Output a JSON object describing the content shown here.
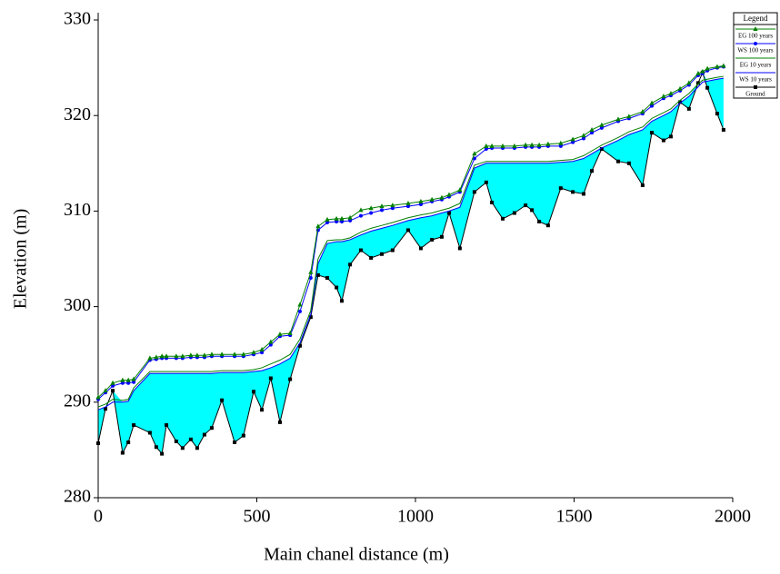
{
  "chart_data": {
    "type": "line",
    "xlabel": "Main chanel distance (m)",
    "ylabel": "Elevation (m)",
    "legend_title": "Legend",
    "legend": "top-right",
    "xlim": [
      0,
      2000
    ],
    "xticks": [
      0,
      500,
      1000,
      1500,
      2000
    ],
    "ylim": [
      280,
      330
    ],
    "yticks": [
      280,
      290,
      300,
      310,
      320,
      330
    ],
    "fill_color": "#00ffff",
    "x": [
      0,
      23,
      46,
      77,
      95,
      112,
      163,
      183,
      201,
      215,
      246,
      266,
      292,
      312,
      335,
      358,
      390,
      430,
      458,
      490,
      516,
      544,
      573,
      605,
      636,
      670,
      693,
      722,
      751,
      768,
      794,
      828,
      860,
      894,
      928,
      977,
      1017,
      1052,
      1083,
      1106,
      1140,
      1186,
      1223,
      1241,
      1275,
      1312,
      1347,
      1367,
      1390,
      1418,
      1458,
      1496,
      1530,
      1556,
      1587,
      1639,
      1673,
      1716,
      1745,
      1782,
      1805,
      1834,
      1862,
      1891,
      1905,
      1920,
      1951,
      1971
    ],
    "series": [
      {
        "name": "EG  100 years",
        "color": "#008000",
        "marker": "triangle",
        "values": [
          290.5,
          291.2,
          292.0,
          292.3,
          292.3,
          292.4,
          294.6,
          294.7,
          294.8,
          294.8,
          294.8,
          294.8,
          294.9,
          294.9,
          294.9,
          295.0,
          295.0,
          295.0,
          295.0,
          295.2,
          295.5,
          296.3,
          297.1,
          297.2,
          300.2,
          303.6,
          308.4,
          309.1,
          309.2,
          309.2,
          309.3,
          310.1,
          310.3,
          310.5,
          310.6,
          310.8,
          311.0,
          311.2,
          311.4,
          311.7,
          312.2,
          316.0,
          316.8,
          316.8,
          316.8,
          316.8,
          316.9,
          316.9,
          316.9,
          317.0,
          317.1,
          317.5,
          317.9,
          318.5,
          319.0,
          319.6,
          319.9,
          320.4,
          321.3,
          322.0,
          322.3,
          322.8,
          323.4,
          324.4,
          324.6,
          324.9,
          325.1,
          325.2
        ]
      },
      {
        "name": "WS  100 years",
        "color": "#0000ff",
        "marker": "circle",
        "values": [
          290.3,
          291.0,
          291.7,
          292.0,
          292.0,
          292.1,
          294.4,
          294.5,
          294.6,
          294.6,
          294.6,
          294.6,
          294.7,
          294.7,
          294.7,
          294.8,
          294.8,
          294.8,
          294.8,
          295.0,
          295.2,
          296.0,
          296.9,
          297.0,
          299.5,
          303.0,
          308.0,
          308.8,
          308.9,
          308.9,
          309.0,
          309.5,
          309.8,
          310.1,
          310.3,
          310.5,
          310.7,
          311.0,
          311.2,
          311.5,
          312.0,
          315.5,
          316.5,
          316.6,
          316.6,
          316.6,
          316.7,
          316.7,
          316.7,
          316.8,
          316.8,
          317.2,
          317.6,
          318.2,
          318.7,
          319.4,
          319.7,
          320.2,
          321.0,
          321.8,
          322.1,
          322.6,
          323.2,
          324.2,
          324.4,
          324.7,
          325.0,
          325.1
        ]
      },
      {
        "name": "EG  10 years",
        "color": "#008000",
        "values": [
          289.5,
          289.8,
          290.3,
          290.2,
          290.3,
          291.5,
          293.2,
          293.2,
          293.2,
          293.2,
          293.2,
          293.2,
          293.2,
          293.2,
          293.2,
          293.2,
          293.3,
          293.3,
          293.3,
          293.4,
          293.6,
          294.0,
          294.4,
          295.0,
          296.6,
          299.6,
          305.0,
          306.9,
          307.0,
          307.0,
          307.2,
          307.8,
          308.2,
          308.5,
          308.8,
          309.3,
          309.6,
          309.8,
          310.1,
          310.3,
          310.8,
          314.8,
          315.2,
          315.2,
          315.2,
          315.2,
          315.2,
          315.2,
          315.2,
          315.2,
          315.3,
          315.4,
          315.8,
          316.3,
          316.9,
          317.7,
          318.3,
          318.8,
          319.7,
          320.3,
          320.7,
          321.6,
          322.3,
          323.3,
          323.7,
          323.8,
          324.0,
          324.1
        ]
      },
      {
        "name": "WS  10 years",
        "color": "#0000ff",
        "values": [
          289.2,
          289.5,
          290.0,
          290.0,
          290.1,
          291.2,
          293.0,
          293.0,
          293.0,
          293.0,
          293.0,
          293.0,
          293.0,
          293.0,
          293.0,
          293.0,
          293.1,
          293.1,
          293.1,
          293.2,
          293.3,
          293.6,
          294.0,
          294.6,
          296.2,
          299.2,
          304.5,
          306.6,
          306.8,
          306.8,
          307.0,
          307.5,
          307.9,
          308.2,
          308.5,
          309.0,
          309.3,
          309.5,
          309.8,
          310.0,
          310.4,
          314.5,
          315.0,
          315.0,
          315.0,
          315.0,
          315.0,
          315.0,
          315.0,
          315.0,
          315.1,
          315.2,
          315.5,
          316.0,
          316.6,
          317.4,
          318.0,
          318.5,
          319.4,
          320.0,
          320.4,
          321.3,
          322.0,
          323.0,
          323.5,
          323.6,
          323.8,
          323.9
        ]
      },
      {
        "name": "Ground",
        "color": "#000000",
        "marker": "square",
        "values": [
          285.7,
          289.3,
          291.2,
          284.7,
          285.8,
          287.6,
          286.8,
          285.3,
          284.6,
          287.6,
          285.9,
          285.2,
          286.1,
          285.2,
          286.6,
          287.3,
          290.2,
          285.8,
          286.5,
          291.1,
          289.2,
          292.5,
          287.9,
          292.4,
          295.9,
          298.9,
          303.3,
          303.0,
          302.0,
          300.6,
          304.4,
          305.9,
          305.1,
          305.5,
          305.9,
          308.0,
          306.1,
          307.0,
          307.3,
          309.8,
          306.1,
          312.0,
          313.0,
          310.9,
          309.2,
          309.8,
          310.6,
          310.1,
          308.9,
          308.5,
          312.4,
          312.0,
          311.8,
          314.2,
          316.5,
          315.2,
          315.0,
          312.7,
          318.2,
          317.4,
          317.8,
          321.4,
          320.7,
          323.4,
          324.5,
          322.9,
          320.2,
          318.5
        ]
      }
    ]
  }
}
